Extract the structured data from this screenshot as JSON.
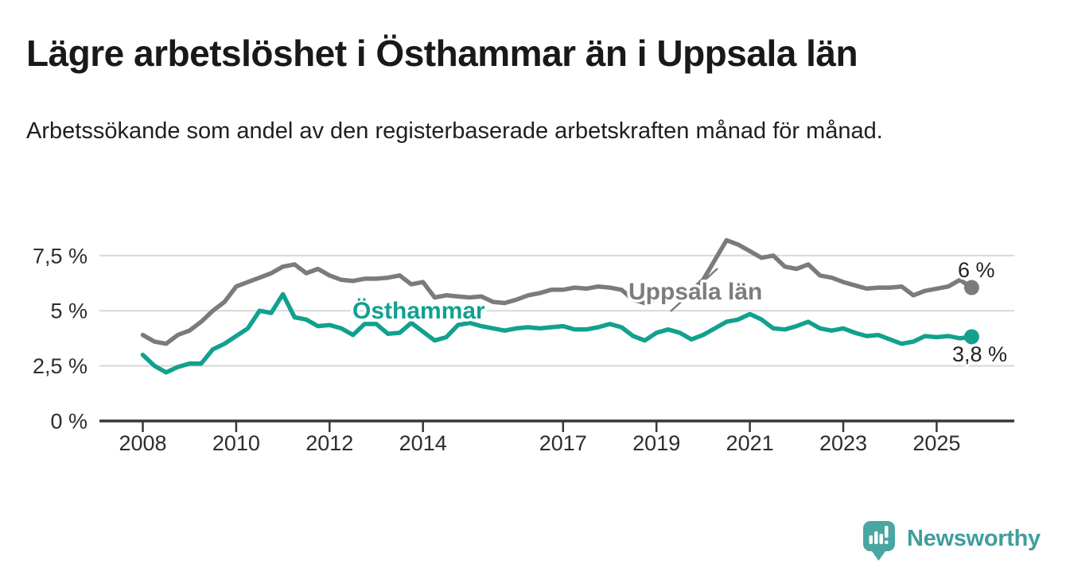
{
  "header": {
    "title": "Lägre arbetslöshet i Östhammar än i Uppsala län",
    "subtitle": "Arbetssökande som andel av den registerbaserade arbetskraften månad för månad."
  },
  "chart_data": {
    "type": "line",
    "title": "Lägre arbetslöshet i Östhammar än i Uppsala län",
    "subtitle": "Arbetssökande som andel av den registerbaserade arbetskraften månad för månad.",
    "xlabel": "",
    "ylabel": "",
    "x_unit": "year",
    "ylim": [
      0,
      8.65
    ],
    "xlim": [
      2007.1,
      2026.7
    ],
    "grid": "horizontal",
    "legend_position": "inline-labels",
    "y_ticks": [
      0,
      2.5,
      5,
      7.5
    ],
    "y_tick_labels": [
      "0 %",
      "2,5 %",
      "5 %",
      "7,5 %"
    ],
    "x_ticks": [
      2008,
      2010,
      2012,
      2014,
      2017,
      2019,
      2021,
      2023,
      2025
    ],
    "x_tick_labels": [
      "2008",
      "2010",
      "2012",
      "2014",
      "2017",
      "2019",
      "2021",
      "2023",
      "2025"
    ],
    "x": [
      2008,
      2008.25,
      2008.5,
      2008.75,
      2009,
      2009.25,
      2009.5,
      2009.75,
      2010,
      2010.25,
      2010.5,
      2010.75,
      2011,
      2011.25,
      2011.5,
      2011.75,
      2012,
      2012.25,
      2012.5,
      2012.75,
      2013,
      2013.25,
      2013.5,
      2013.75,
      2014,
      2014.25,
      2014.5,
      2014.75,
      2015,
      2015.25,
      2015.5,
      2015.75,
      2016,
      2016.25,
      2016.5,
      2016.75,
      2017,
      2017.25,
      2017.5,
      2017.75,
      2018,
      2018.25,
      2018.5,
      2018.75,
      2019,
      2019.25,
      2019.5,
      2019.75,
      2020,
      2020.25,
      2020.5,
      2020.75,
      2021,
      2021.25,
      2021.5,
      2021.75,
      2022,
      2022.25,
      2022.5,
      2022.75,
      2023,
      2023.25,
      2023.5,
      2023.75,
      2024,
      2024.25,
      2024.5,
      2024.75,
      2025,
      2025.25,
      2025.5,
      2025.75
    ],
    "series": [
      {
        "name": "Uppsala län",
        "color": "#7b7b7b",
        "label_color": "#7d7d7d",
        "end_label": "6 %",
        "end_value": 6.0,
        "values": [
          3.9,
          3.6,
          3.5,
          3.9,
          4.1,
          4.5,
          5.0,
          5.4,
          6.1,
          6.3,
          6.5,
          6.7,
          7.0,
          7.1,
          6.7,
          6.9,
          6.6,
          6.4,
          6.35,
          6.45,
          6.45,
          6.5,
          6.6,
          6.2,
          6.3,
          5.6,
          5.7,
          5.65,
          5.6,
          5.65,
          5.4,
          5.35,
          5.5,
          5.7,
          5.8,
          5.95,
          5.95,
          6.05,
          6.0,
          6.1,
          6.05,
          5.95,
          5.5,
          5.35,
          5.5,
          5.65,
          5.8,
          5.9,
          6.4,
          7.3,
          8.2,
          8.0,
          7.7,
          7.4,
          7.5,
          7.0,
          6.9,
          7.1,
          6.6,
          6.5,
          6.3,
          6.15,
          6.0,
          6.05,
          6.05,
          6.1,
          5.7,
          5.9,
          6.0,
          6.1,
          6.4,
          6.05
        ]
      },
      {
        "name": "Östhammar",
        "color": "#12a08f",
        "label_color": "#12a08f",
        "end_label": "3,8 %",
        "end_value": 3.8,
        "values": [
          3.0,
          2.5,
          2.2,
          2.45,
          2.6,
          2.6,
          3.25,
          3.5,
          3.85,
          4.2,
          5.0,
          4.9,
          5.75,
          4.7,
          4.6,
          4.3,
          4.35,
          4.2,
          3.9,
          4.4,
          4.4,
          3.95,
          4.0,
          4.45,
          4.05,
          3.65,
          3.8,
          4.35,
          4.45,
          4.3,
          4.2,
          4.1,
          4.2,
          4.25,
          4.2,
          4.25,
          4.3,
          4.15,
          4.15,
          4.25,
          4.4,
          4.25,
          3.85,
          3.65,
          4.0,
          4.15,
          4.0,
          3.7,
          3.9,
          4.2,
          4.5,
          4.6,
          4.85,
          4.6,
          4.2,
          4.15,
          4.3,
          4.5,
          4.2,
          4.1,
          4.2,
          4.0,
          3.85,
          3.9,
          3.7,
          3.5,
          3.6,
          3.85,
          3.8,
          3.85,
          3.75,
          3.82
        ]
      }
    ],
    "colors": {
      "grid": "#d8d8d8",
      "axis": "#383838",
      "tick_text": "#2d2d2d",
      "value_label_text": "#222222"
    }
  },
  "branding": {
    "name": "Newsworthy",
    "icon": "bar-chart-speech-bubble-icon",
    "icon_color": "#4aa6a2",
    "text_color": "#3f9e9b"
  }
}
